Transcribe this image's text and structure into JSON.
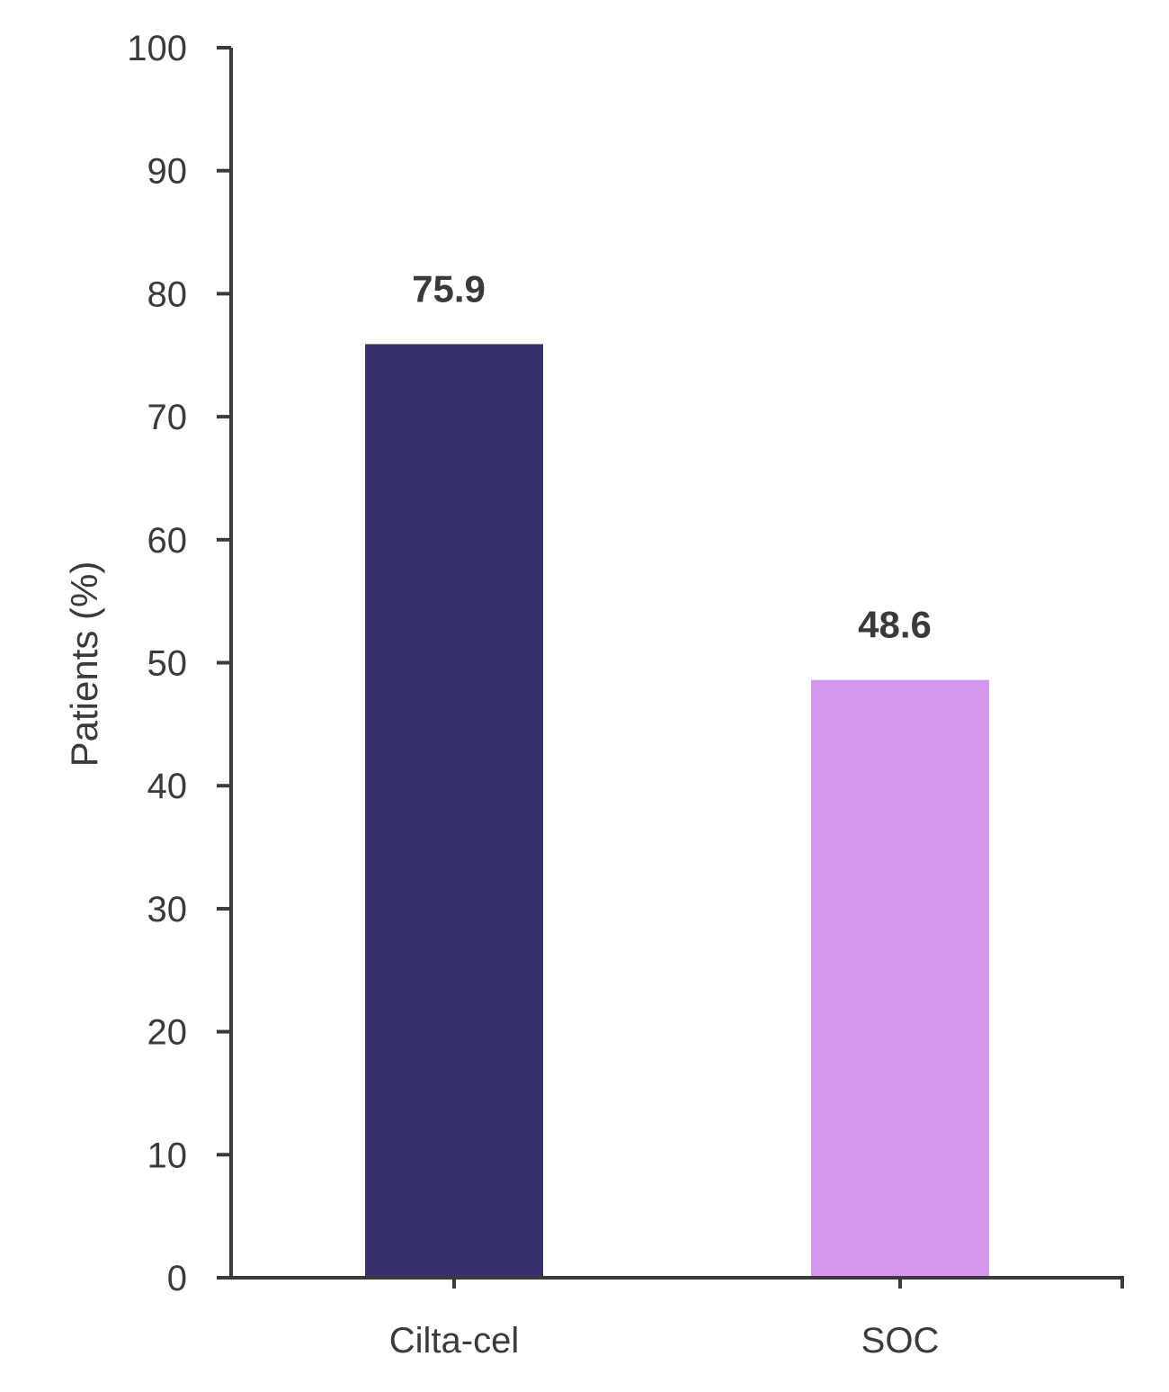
{
  "chart_data": {
    "type": "bar",
    "title": "",
    "xlabel": "",
    "ylabel": "Patients (%)",
    "ylim": [
      0,
      100
    ],
    "yticks": [
      0,
      10,
      20,
      30,
      40,
      50,
      60,
      70,
      80,
      90,
      100
    ],
    "categories": [
      "Cilta-cel",
      "SOC"
    ],
    "values": [
      75.9,
      48.6
    ],
    "data_labels": [
      "75.9",
      "48.6"
    ],
    "colors": [
      "#35326b",
      "#d596ee"
    ],
    "grid": false,
    "legend": "none"
  }
}
